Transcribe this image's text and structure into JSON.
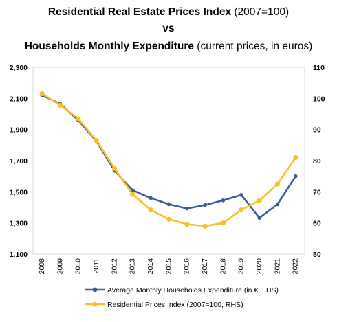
{
  "title": {
    "line1_bold": "Residential Real Estate Prices Index",
    "line1_rest": " (2007=100)",
    "line2": "vs",
    "line3_bold": "Households Monthly Expenditure",
    "line3_rest": " (current prices, in euros)"
  },
  "chart_data": {
    "type": "line",
    "categories": [
      "2008",
      "2009",
      "2010",
      "2011",
      "2012",
      "2013",
      "2014",
      "2015",
      "2016",
      "2017",
      "2018",
      "2019",
      "2020",
      "2021",
      "2022"
    ],
    "series": [
      {
        "name": "Average Monthly Households Expenditure (in €, LHS)",
        "axis": "left",
        "color": "#3a5d9c",
        "values": [
          2120,
          2065,
          1960,
          1825,
          1635,
          1510,
          1460,
          1420,
          1393,
          1415,
          1445,
          1480,
          1333,
          1420,
          1600
        ]
      },
      {
        "name": "Residential Prices Index (2007=100, RHS)",
        "axis": "right",
        "color": "#f9c02a",
        "values": [
          101.5,
          97.8,
          93.5,
          86.5,
          77.5,
          69.2,
          64.2,
          61.2,
          59.6,
          59.0,
          60.0,
          64.2,
          67.2,
          72.5,
          81.0
        ]
      }
    ],
    "y_left": {
      "min": 1100,
      "max": 2300,
      "ticks": [
        "1,100",
        "1,300",
        "1,500",
        "1,700",
        "1,900",
        "2,100",
        "2,300"
      ],
      "tick_values": [
        1100,
        1300,
        1500,
        1700,
        1900,
        2100,
        2300
      ]
    },
    "y_right": {
      "min": 50,
      "max": 110,
      "ticks": [
        "50",
        "60",
        "70",
        "80",
        "90",
        "100",
        "110"
      ],
      "tick_values": [
        50,
        60,
        70,
        80,
        90,
        100,
        110
      ]
    },
    "grid": false,
    "legend_position": "bottom"
  }
}
